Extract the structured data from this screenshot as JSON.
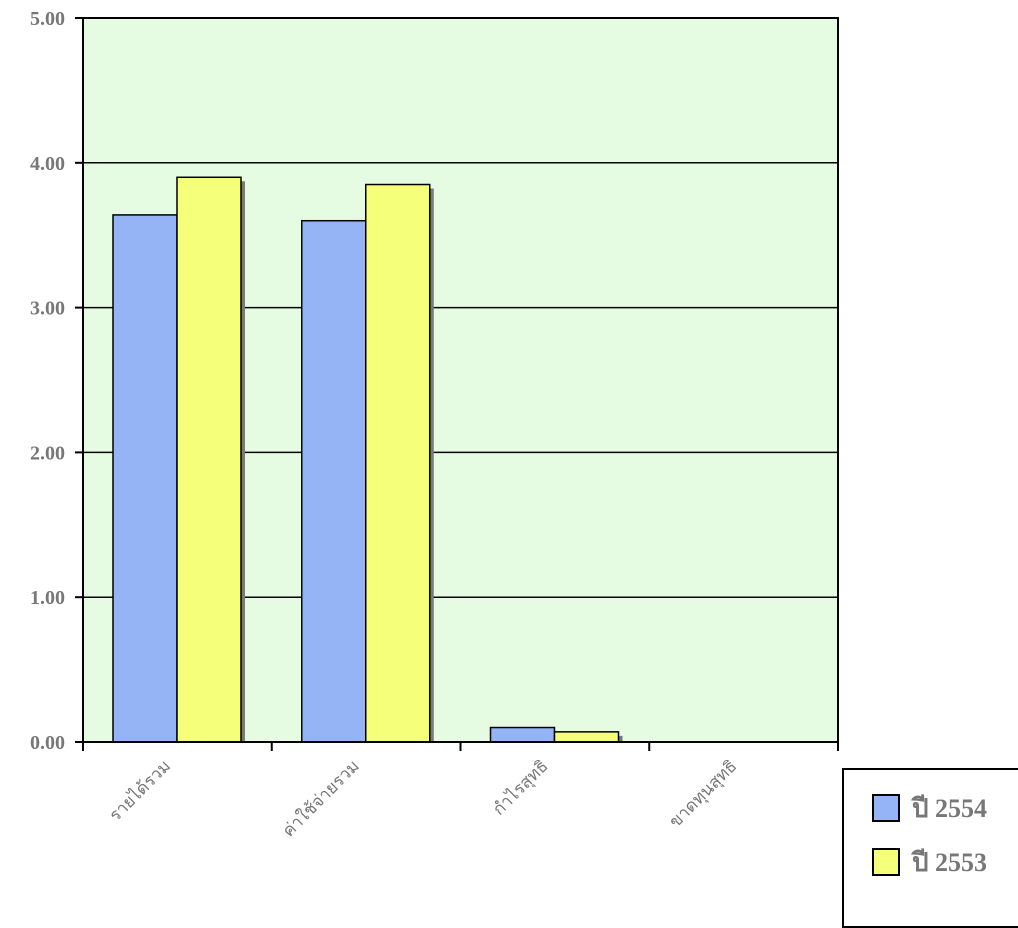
{
  "chart_data": {
    "type": "bar",
    "categories": [
      "รายได้รวม",
      "ค่าใช้จ่ายรวม",
      "กำไรสุทธิ",
      "ขาดทุนสุทธิ"
    ],
    "series": [
      {
        "name": "ปี 2554",
        "values": [
          3.64,
          3.6,
          0.1,
          0
        ],
        "color": "#94b4f6"
      },
      {
        "name": "ปี 2553",
        "values": [
          3.9,
          3.85,
          0.07,
          0
        ],
        "color": "#f5ff7a"
      }
    ],
    "y_tick_labels": [
      "0.00",
      "1.00",
      "2.00",
      "3.00",
      "4.00",
      "5.00"
    ],
    "ylim": [
      0,
      5
    ],
    "grid": true,
    "plot_background": "#e5fce2",
    "legend_position": "bottom-right",
    "title": "",
    "xlabel": "",
    "ylabel": ""
  }
}
